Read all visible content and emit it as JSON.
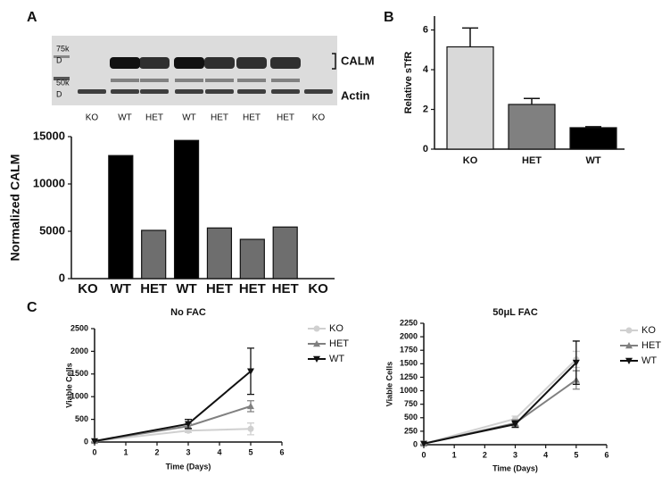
{
  "figure": {
    "panel_labels": [
      "A",
      "B",
      "C"
    ]
  },
  "blot": {
    "markers": [
      [
        "75k",
        "D"
      ],
      [
        "50k",
        "D"
      ]
    ],
    "bands": [
      "CALM",
      "Actin"
    ],
    "lanes": [
      "KO",
      "WT",
      "HET",
      "WT",
      "HET",
      "HET",
      "HET",
      "KO"
    ]
  },
  "chart_data": [
    {
      "type": "bar",
      "y_label": "Normalized CALM",
      "categories": [
        "KO",
        "WT",
        "HET",
        "WT",
        "HET",
        "HET",
        "HET",
        "KO"
      ],
      "values": [
        0,
        13000,
        5100,
        14600,
        5350,
        4150,
        5450,
        0
      ],
      "colors": [
        "#000000",
        "#000000",
        "#6e6e6e",
        "#000000",
        "#6e6e6e",
        "#6e6e6e",
        "#6e6e6e",
        "#000000"
      ],
      "ylim": [
        0,
        15000
      ],
      "yticks": [
        0,
        5000,
        10000,
        15000
      ]
    },
    {
      "type": "bar",
      "y_label": "Relative sTfR",
      "categories": [
        "KO",
        "HET",
        "WT"
      ],
      "values": [
        5.15,
        2.25,
        1.08
      ],
      "errors": [
        0.95,
        0.3,
        0.05
      ],
      "colors": [
        "#d9d9d9",
        "#808080",
        "#000000"
      ],
      "ylim": [
        0,
        6.7
      ],
      "yticks": [
        0,
        2,
        4,
        6
      ]
    },
    {
      "type": "line",
      "title": "No FAC",
      "x_label": "Time (Days)",
      "y_label": "Viable Cells",
      "x": [
        0,
        3,
        5
      ],
      "xlim": [
        0,
        6
      ],
      "xticks": [
        0,
        1,
        2,
        3,
        4,
        5,
        6
      ],
      "ylim": [
        0,
        2500
      ],
      "yticks": [
        0,
        500,
        1000,
        1500,
        2000,
        2500
      ],
      "series": [
        {
          "name": "KO",
          "color": "#d0d0d0",
          "marker": "circle",
          "values": [
            20,
            250,
            290
          ],
          "errors": [
            null,
            40,
            130
          ]
        },
        {
          "name": "HET",
          "color": "#808080",
          "marker": "triangle-up",
          "values": [
            20,
            350,
            790
          ],
          "errors": [
            null,
            60,
            120
          ]
        },
        {
          "name": "WT",
          "color": "#111111",
          "marker": "triangle-down",
          "values": [
            20,
            400,
            1560
          ],
          "errors": [
            null,
            100,
            510
          ]
        }
      ]
    },
    {
      "type": "line",
      "title": "50μL FAC",
      "x_label": "Time (Days)",
      "y_label": "Viable Cells",
      "x": [
        0,
        3,
        5
      ],
      "xlim": [
        0,
        6
      ],
      "xticks": [
        0,
        1,
        2,
        3,
        4,
        5,
        6
      ],
      "ylim": [
        0,
        2250
      ],
      "yticks": [
        0,
        250,
        500,
        750,
        1000,
        1250,
        1500,
        1750,
        2000,
        2250
      ],
      "series": [
        {
          "name": "KO",
          "color": "#d0d0d0",
          "marker": "circle",
          "values": [
            20,
            480,
            1580
          ],
          "errors": [
            null,
            50,
            150
          ]
        },
        {
          "name": "HET",
          "color": "#808080",
          "marker": "triangle-up",
          "values": [
            20,
            400,
            1200
          ],
          "errors": [
            null,
            60,
            170
          ]
        },
        {
          "name": "WT",
          "color": "#111111",
          "marker": "triangle-down",
          "values": [
            20,
            380,
            1520
          ],
          "errors": [
            null,
            60,
            400
          ]
        }
      ]
    }
  ]
}
